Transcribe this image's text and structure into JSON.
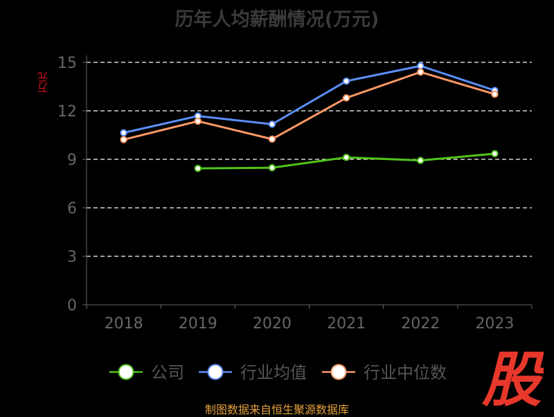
{
  "chart_data": {
    "type": "line",
    "title": "历年人均薪酬情况(万元)",
    "ylabel": "万元",
    "xlabel": "",
    "categories": [
      "2018",
      "2019",
      "2020",
      "2021",
      "2022",
      "2023"
    ],
    "ylim": [
      0,
      15
    ],
    "yticks": [
      "0",
      "3",
      "6",
      "9",
      "12",
      "15"
    ],
    "grid": true,
    "legend_position": "bottom",
    "series": [
      {
        "name": "公司",
        "color": "#52c41a",
        "values": [
          null,
          8.44,
          8.48,
          9.12,
          8.93,
          9.35
        ]
      },
      {
        "name": "行业均值",
        "color": "#5b8ff9",
        "values": [
          10.64,
          11.68,
          11.17,
          13.84,
          14.78,
          13.26
        ]
      },
      {
        "name": "行业中位数",
        "color": "#ff9966",
        "values": [
          10.22,
          11.36,
          10.25,
          12.8,
          14.4,
          13.03
        ]
      }
    ]
  },
  "source_text": "制图数据来自恒生聚源数据库",
  "watermark_text": "股",
  "colors": {
    "background": "#000000",
    "grid": "#ffffff",
    "axis": "#666666",
    "tick_text": "#666666",
    "ylabel": "#e0141e",
    "source": "#e6a23c",
    "watermark": "#e8382c"
  }
}
